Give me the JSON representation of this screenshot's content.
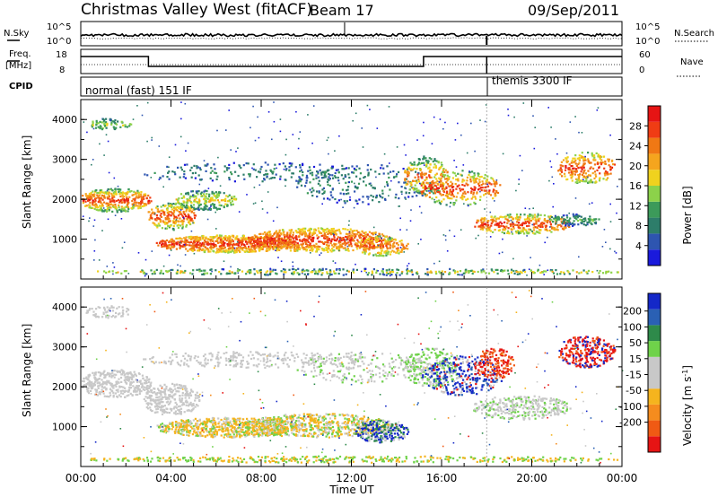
{
  "header": {
    "title": "Christmas Valley West (fitACF)",
    "beam": "Beam 17",
    "date": "09/Sep/2011"
  },
  "top_panels": {
    "nsky_label": "N.Sky",
    "nsearch_label": "N.Search",
    "noise_ticks": [
      "10^5",
      "10^0"
    ],
    "freq_label": "Freq.",
    "freq_unit": "[MHz]",
    "freq_ticks": [
      "18",
      "8"
    ],
    "nave_label": "Nave",
    "nave_ticks": [
      "60",
      "0"
    ],
    "cpid_label": "CPID",
    "cpid_segments": [
      "normal (fast) 151 IF",
      "themis 3300 IF"
    ]
  },
  "colors": {
    "power_scale": [
      "#1a1adc",
      "#2e55b0",
      "#2d7d6a",
      "#3c9a5a",
      "#8cd24a",
      "#f0d21e",
      "#f5a51e",
      "#f07814",
      "#f03c14",
      "#e61414"
    ],
    "velocity_scale": [
      "#1428c8",
      "#2a60b4",
      "#2e8a4a",
      "#6fd24a",
      "#c8c8c8",
      "#c8c8c8",
      "#f5b41e",
      "#f58c1e",
      "#f05a14",
      "#e61414"
    ],
    "scatter_gray": "#c8c8c8",
    "background": "#ffffff"
  },
  "chart_data": [
    {
      "type": "heatmap",
      "panel": "power",
      "xlabel": "Time UT",
      "ylabel": "Slant Range [km]",
      "x_ticks": [
        "00:00",
        "04:00",
        "08:00",
        "12:00",
        "16:00",
        "20:00",
        "00:00"
      ],
      "y_ticks": [
        1000,
        2000,
        3000,
        4000
      ],
      "ylim": [
        0,
        4500
      ],
      "colorbar": {
        "label": "Power [dB]",
        "ticks": [
          4,
          8,
          12,
          16,
          20,
          24,
          28
        ]
      }
    },
    {
      "type": "heatmap",
      "panel": "velocity",
      "xlabel": "Time UT",
      "ylabel": "Slant Range [km]",
      "x_ticks": [
        "00:00",
        "04:00",
        "08:00",
        "12:00",
        "16:00",
        "20:00",
        "00:00"
      ],
      "y_ticks": [
        1000,
        2000,
        3000,
        4000
      ],
      "ylim": [
        0,
        4500
      ],
      "colorbar": {
        "label": "Velocity [m s",
        "label_exp": "-1",
        "label_close": "]",
        "ticks": [
          200,
          100,
          50,
          15,
          -15,
          -50,
          -100,
          -200
        ]
      }
    }
  ]
}
